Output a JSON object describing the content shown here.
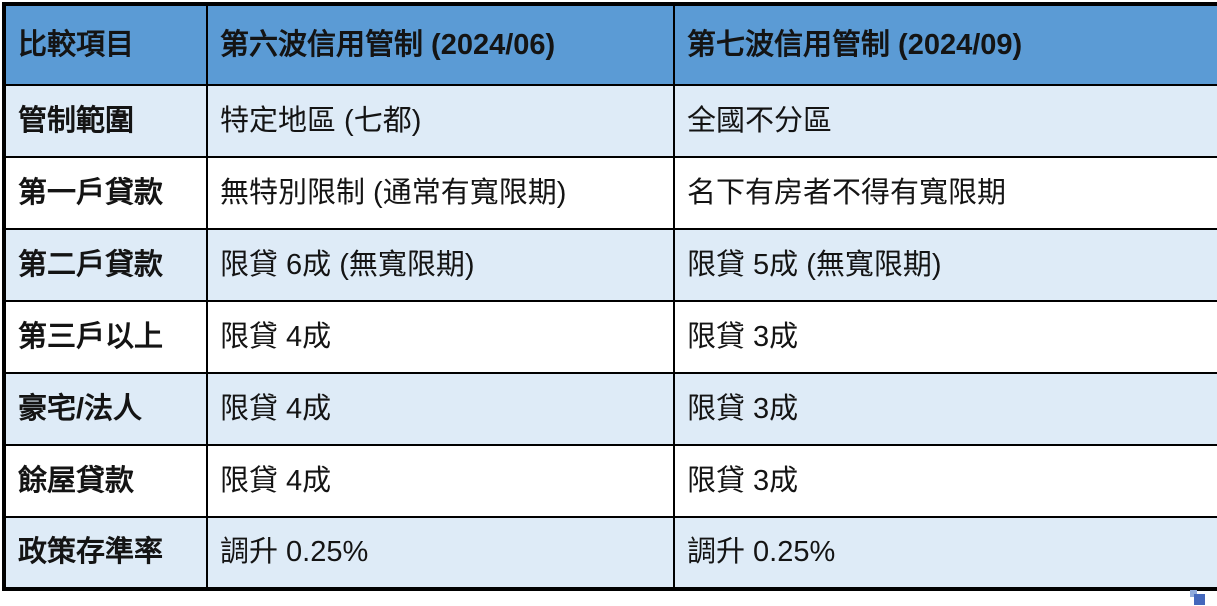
{
  "chart_data": {
    "type": "table",
    "columns": [
      "比較項目",
      "第六波信用管制 (2024/06)",
      "第七波信用管制 (2024/09)"
    ],
    "rows": [
      [
        "管制範圍",
        "特定地區 (七都)",
        "全國不分區"
      ],
      [
        "第一戶貸款",
        "無特別限制 (通常有寬限期)",
        "名下有房者不得有寬限期"
      ],
      [
        "第二戶貸款",
        "限貸 6成 (無寬限期)",
        "限貸 5成 (無寬限期)"
      ],
      [
        "第三戶以上",
        "限貸 4成",
        "限貸 3成"
      ],
      [
        "豪宅/法人",
        "限貸 4成",
        "限貸 3成"
      ],
      [
        "餘屋貸款",
        "限貸 4成",
        "限貸 3成"
      ],
      [
        "政策存準率",
        "調升 0.25%",
        "調升 0.25%"
      ]
    ],
    "layout_hints": {
      "alternating_rows": true,
      "header_style": "bold",
      "first_column_style": "bold"
    }
  },
  "colors": {
    "header_bg": "#5B9BD5",
    "alt_row_bg": "#DEEBF7",
    "plain_row_bg": "#FFFFFF",
    "border": "#000000",
    "text": "#141414",
    "handle_dark": "#4467BC",
    "handle_light": "#8FAADC"
  }
}
